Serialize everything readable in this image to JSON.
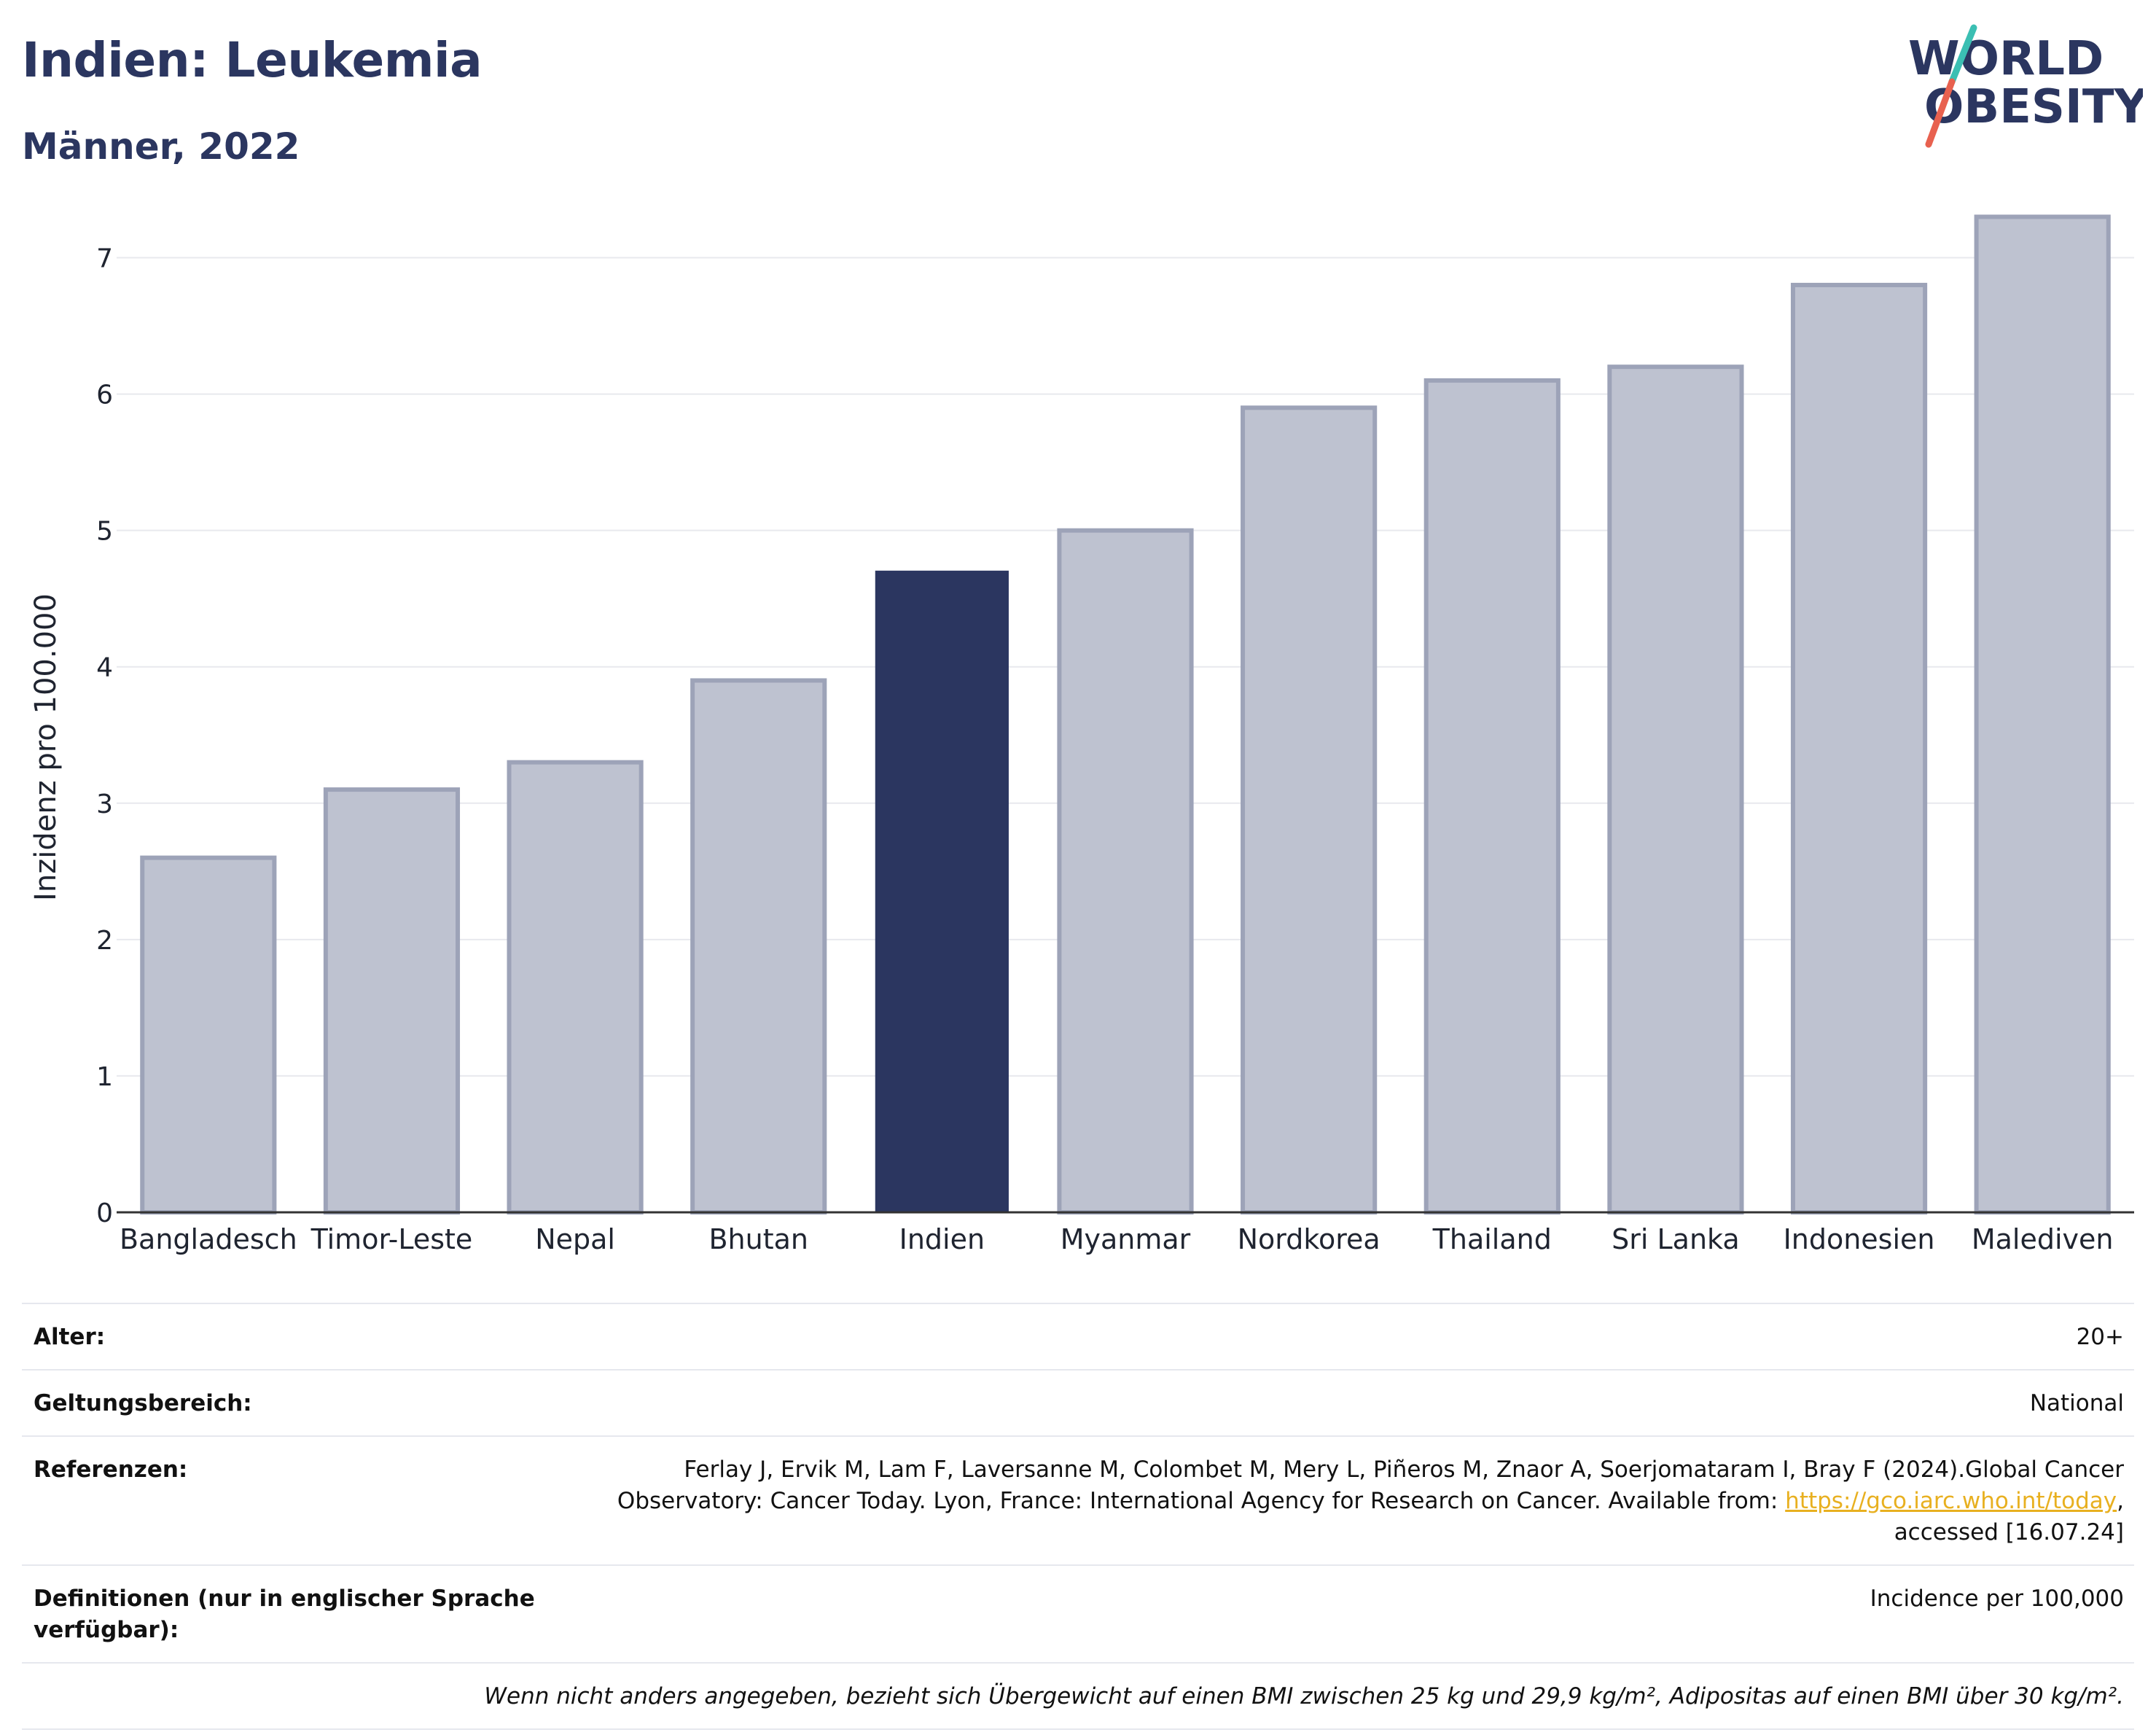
{
  "header": {
    "title": "Indien: Leukemia",
    "subtitle": "Männer, 2022",
    "logo_line1": "WORLD",
    "logo_line2": "OBESITY"
  },
  "colors": {
    "title": "#2b3660",
    "highlight_bar": "#2b3660",
    "other_bar_fill": "#bec2d0",
    "other_bar_stroke": "#9da3b8",
    "logo_teal": "#3bbfb3",
    "logo_red": "#e8614f",
    "link": "#e8b020"
  },
  "chart_data": {
    "type": "bar",
    "ylabel": "Inzidenz pro 100.000",
    "xlabel": "",
    "ylim": [
      0,
      7.5
    ],
    "yticks": [
      0,
      1,
      2,
      3,
      4,
      5,
      6,
      7
    ],
    "grid": true,
    "categories": [
      "Bangladesch",
      "Timor-Leste",
      "Nepal",
      "Bhutan",
      "Indien",
      "Myanmar",
      "Nordkorea",
      "Thailand",
      "Sri Lanka",
      "Indonesien",
      "Malediven"
    ],
    "values": [
      2.6,
      3.1,
      3.3,
      3.9,
      4.7,
      5.0,
      5.9,
      6.1,
      6.2,
      6.8,
      7.3
    ],
    "highlight": "Indien"
  },
  "info": {
    "alter_label": "Alter:",
    "alter_value": "20+",
    "scope_label": "Geltungsbereich:",
    "scope_value": "National",
    "ref_label": "Referenzen:",
    "ref_line1": "Ferlay J, Ervik M, Lam F, Laversanne M, Colombet M, Mery L, Piñeros M, Znaor A, Soerjomataram I, Bray F (2024).Global Cancer",
    "ref_line2_pre": "Observatory: Cancer Today. Lyon, France: International Agency for Research on Cancer. Available from: ",
    "ref_link": "https://gco.iarc.who.int/today",
    "ref_line2_post": ",",
    "ref_line3": "accessed [16.07.24]",
    "def_label": "Definitionen (nur in englischer Sprache verfügbar):",
    "def_value": "Incidence per 100,000",
    "note": "Wenn nicht anders angegeben, bezieht sich Übergewicht auf einen BMI zwischen 25 kg und 29,9 kg/m², Adipositas auf einen BMI über 30 kg/m²."
  }
}
